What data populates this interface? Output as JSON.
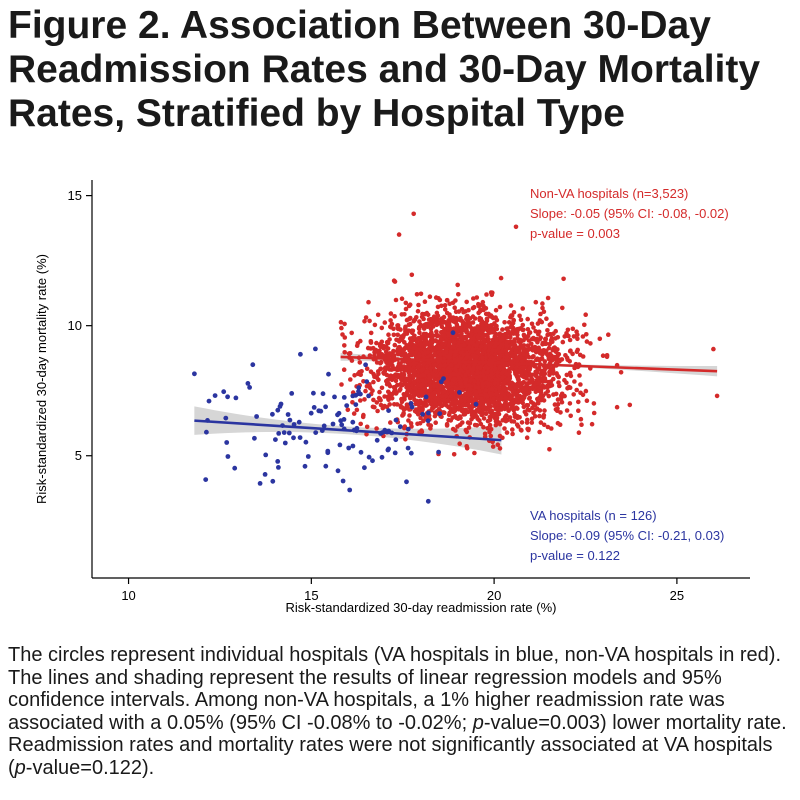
{
  "figure": {
    "title": "Figure 2. Association Between 30-Day Readmission Rates and 30-Day Mortality Rates, Stratified by Hospital Type"
  },
  "caption": {
    "part1": "The circles represent individual hospitals (VA hospitals in blue, non-VA hospitals in red). The lines and shading represent the results of linear regression models and 95% confidence intervals. Among non-VA hospitals, a 1% higher readmission rate was associated with a 0.05% (95% CI -0.08% to -0.02%; ",
    "p_label_1": "p",
    "part2": "-value=0.003) lower mortality rate. Readmission rates and mortality rates were not significantly associated at VA hospitals (",
    "p_label_2": "p",
    "part3": "-value=0.122)."
  },
  "colors": {
    "non_va": "#d42a2a",
    "va": "#2b35a0",
    "ci_band": "#cfcfcf"
  },
  "chart_data": {
    "type": "scatter",
    "title": "",
    "xlabel": "Risk-standardized 30-day readmission rate (%)",
    "ylabel": "Risk-standardized 30-day mortality rate (%)",
    "xlim": [
      9,
      27
    ],
    "ylim": [
      0.3,
      15.6
    ],
    "xticks": [
      10,
      15,
      20,
      25
    ],
    "yticks": [
      5,
      10,
      15
    ],
    "grid": false,
    "series": [
      {
        "name": "Non-VA hospitals (n=3,523)",
        "n": 3523,
        "center": [
          19.3,
          8.3
        ],
        "sd": [
          1.3,
          1.05
        ],
        "x_range": [
          15.8,
          26.1
        ],
        "regression": {
          "x1": 15.8,
          "y1": 8.8,
          "x2": 26.1,
          "y2": 8.25
        },
        "ci_half_width": {
          "left": 0.15,
          "mid": 0.05,
          "right": 0.2
        },
        "annotation": [
          "Non-VA hospitals (n=3,523)",
          "Slope: -0.05 (95% CI: -0.08, -0.02)",
          "p-value = 0.003"
        ],
        "notable_points": [
          [
            17.8,
            14.3
          ],
          [
            17.4,
            13.5
          ],
          [
            20.6,
            13.8
          ],
          [
            21.9,
            11.8
          ],
          [
            26.1,
            7.3
          ],
          [
            26.0,
            9.1
          ]
        ]
      },
      {
        "name": "VA hospitals (n = 126)",
        "n": 126,
        "center": [
          15.8,
          6.3
        ],
        "sd": [
          1.85,
          1.1
        ],
        "x_range": [
          11.8,
          20.2
        ],
        "regression": {
          "x1": 11.8,
          "y1": 6.35,
          "x2": 20.2,
          "y2": 5.6
        },
        "ci_half_width": {
          "left": 0.55,
          "mid": 0.15,
          "right": 0.55
        },
        "annotation": [
          "VA hospitals (n = 126)",
          "Slope: -0.09 (95% CI: -0.21, 0.03)",
          "p-value = 0.122"
        ],
        "notable_points": [
          [
            11.8,
            8.15
          ],
          [
            13.4,
            8.5
          ],
          [
            14.7,
            8.9
          ],
          [
            14.1,
            4.55
          ],
          [
            18.2,
            3.25
          ],
          [
            12.2,
            7.1
          ]
        ]
      }
    ]
  }
}
